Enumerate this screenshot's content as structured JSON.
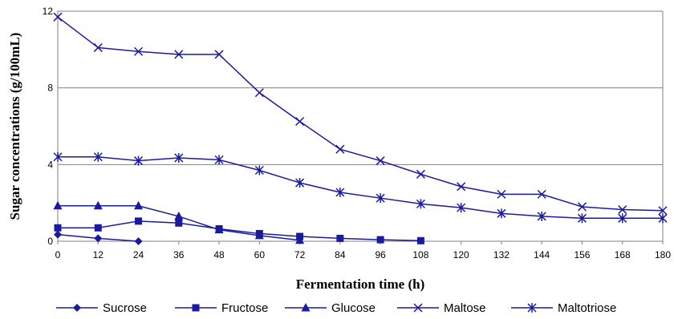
{
  "chart_data": {
    "type": "line",
    "xlabel": "Fermentation time (h)",
    "ylabel": "Sugar concentrations (g/100mL)",
    "xlim": [
      0,
      180
    ],
    "ylim": [
      0,
      12
    ],
    "x_ticks": [
      "0",
      "12",
      "24",
      "36",
      "48",
      "60",
      "72",
      "84",
      "96",
      "108",
      "120",
      "132",
      "144",
      "156",
      "168",
      "180"
    ],
    "y_ticks": [
      "0",
      "4",
      "8",
      "12"
    ],
    "grid": "horizontal",
    "legend_position": "bottom",
    "line_color": "#1a1aa0",
    "series": [
      {
        "name": "Sucrose",
        "marker": "diamond",
        "x": [
          0,
          12,
          24
        ],
        "y": [
          0.35,
          0.15,
          0.0
        ]
      },
      {
        "name": "Fructose",
        "marker": "square",
        "x": [
          0,
          12,
          24,
          36,
          48,
          60,
          72,
          84,
          96,
          108
        ],
        "y": [
          0.7,
          0.7,
          1.05,
          0.95,
          0.65,
          0.4,
          0.25,
          0.15,
          0.08,
          0.03
        ]
      },
      {
        "name": "Glucose",
        "marker": "triangle",
        "x": [
          0,
          12,
          24,
          36,
          48,
          60,
          72
        ],
        "y": [
          1.85,
          1.85,
          1.85,
          1.3,
          0.6,
          0.3,
          0.05
        ]
      },
      {
        "name": "Maltose",
        "marker": "x",
        "x": [
          0,
          12,
          24,
          36,
          48,
          60,
          72,
          84,
          96,
          108,
          120,
          132,
          144,
          156,
          168,
          180
        ],
        "y": [
          11.7,
          10.1,
          9.9,
          9.75,
          9.75,
          7.75,
          6.25,
          4.8,
          4.2,
          3.5,
          2.85,
          2.45,
          2.45,
          1.8,
          1.65,
          1.6
        ]
      },
      {
        "name": "Maltotriose",
        "marker": "asterisk",
        "x": [
          0,
          12,
          24,
          36,
          48,
          60,
          72,
          84,
          96,
          108,
          120,
          132,
          144,
          156,
          168,
          180
        ],
        "y": [
          4.4,
          4.4,
          4.2,
          4.35,
          4.25,
          3.7,
          3.05,
          2.55,
          2.25,
          1.95,
          1.75,
          1.45,
          1.3,
          1.2,
          1.2,
          1.2
        ]
      }
    ]
  }
}
